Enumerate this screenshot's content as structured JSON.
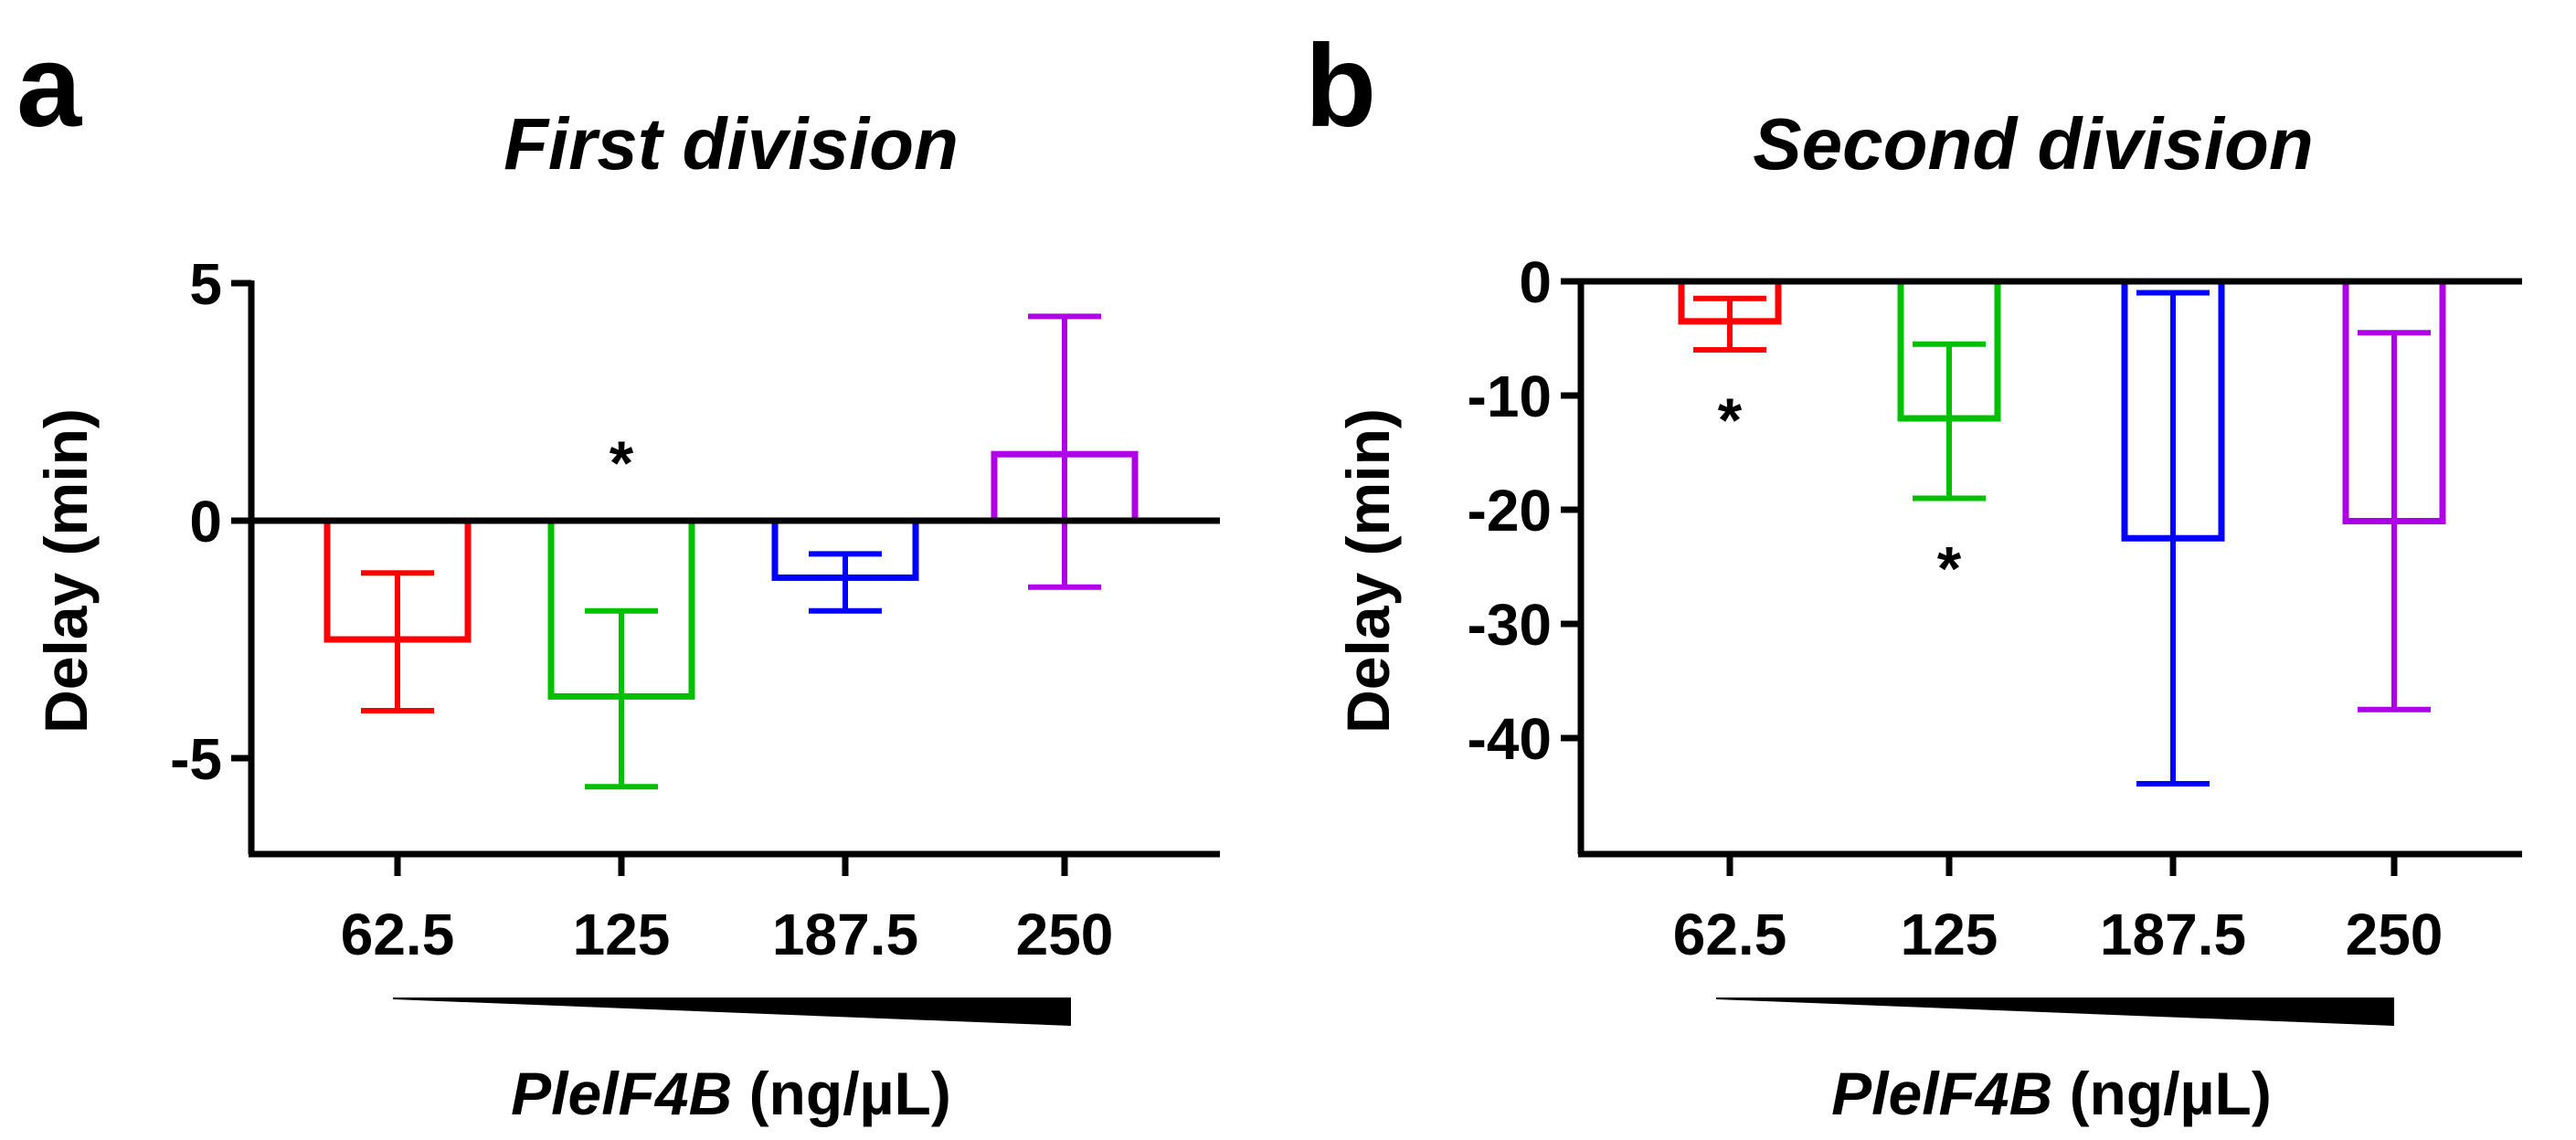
{
  "chart_data": [
    {
      "type": "bar",
      "panel_label": "a",
      "title": "First division",
      "ylabel": "Delay (min)",
      "xlabel_gene": "PlelF4B",
      "xlabel_unit": "(ng/µL)",
      "categories": [
        "62.5",
        "125",
        "187.5",
        "250"
      ],
      "values": [
        -2.5,
        -3.7,
        -1.2,
        1.4
      ],
      "error_low": [
        -4.0,
        -5.6,
        -1.9,
        -1.4
      ],
      "error_high": [
        -1.1,
        -1.9,
        -0.7,
        4.3
      ],
      "significance": [
        "",
        "*",
        "",
        ""
      ],
      "yticks": [
        5,
        0,
        -5
      ],
      "ytick_labels": [
        "5",
        "0",
        "-5"
      ],
      "ylim": [
        -7,
        5
      ],
      "colors": [
        "#ff0000",
        "#00c000",
        "#0000ff",
        "#b000e8"
      ],
      "grid": false,
      "legend": "none"
    },
    {
      "type": "bar",
      "panel_label": "b",
      "title": "Second division",
      "ylabel": "Delay (min)",
      "xlabel_gene": "PlelF4B",
      "xlabel_unit": "(ng/µL)",
      "categories": [
        "62.5",
        "125",
        "187.5",
        "250"
      ],
      "values": [
        -3.5,
        -12,
        -22.5,
        -21
      ],
      "error_low": [
        -6,
        -19,
        -44,
        -37.5
      ],
      "error_high": [
        -1.5,
        -5.5,
        -1,
        -4.5
      ],
      "significance": [
        "*",
        "*",
        "",
        ""
      ],
      "yticks": [
        0,
        -10,
        -20,
        -30,
        -40
      ],
      "ytick_labels": [
        "0",
        "-10",
        "-20",
        "-30",
        "-40"
      ],
      "ylim": [
        -50,
        0
      ],
      "colors": [
        "#ff0000",
        "#00c000",
        "#0000ff",
        "#b000e8"
      ],
      "grid": false,
      "legend": "none"
    }
  ]
}
